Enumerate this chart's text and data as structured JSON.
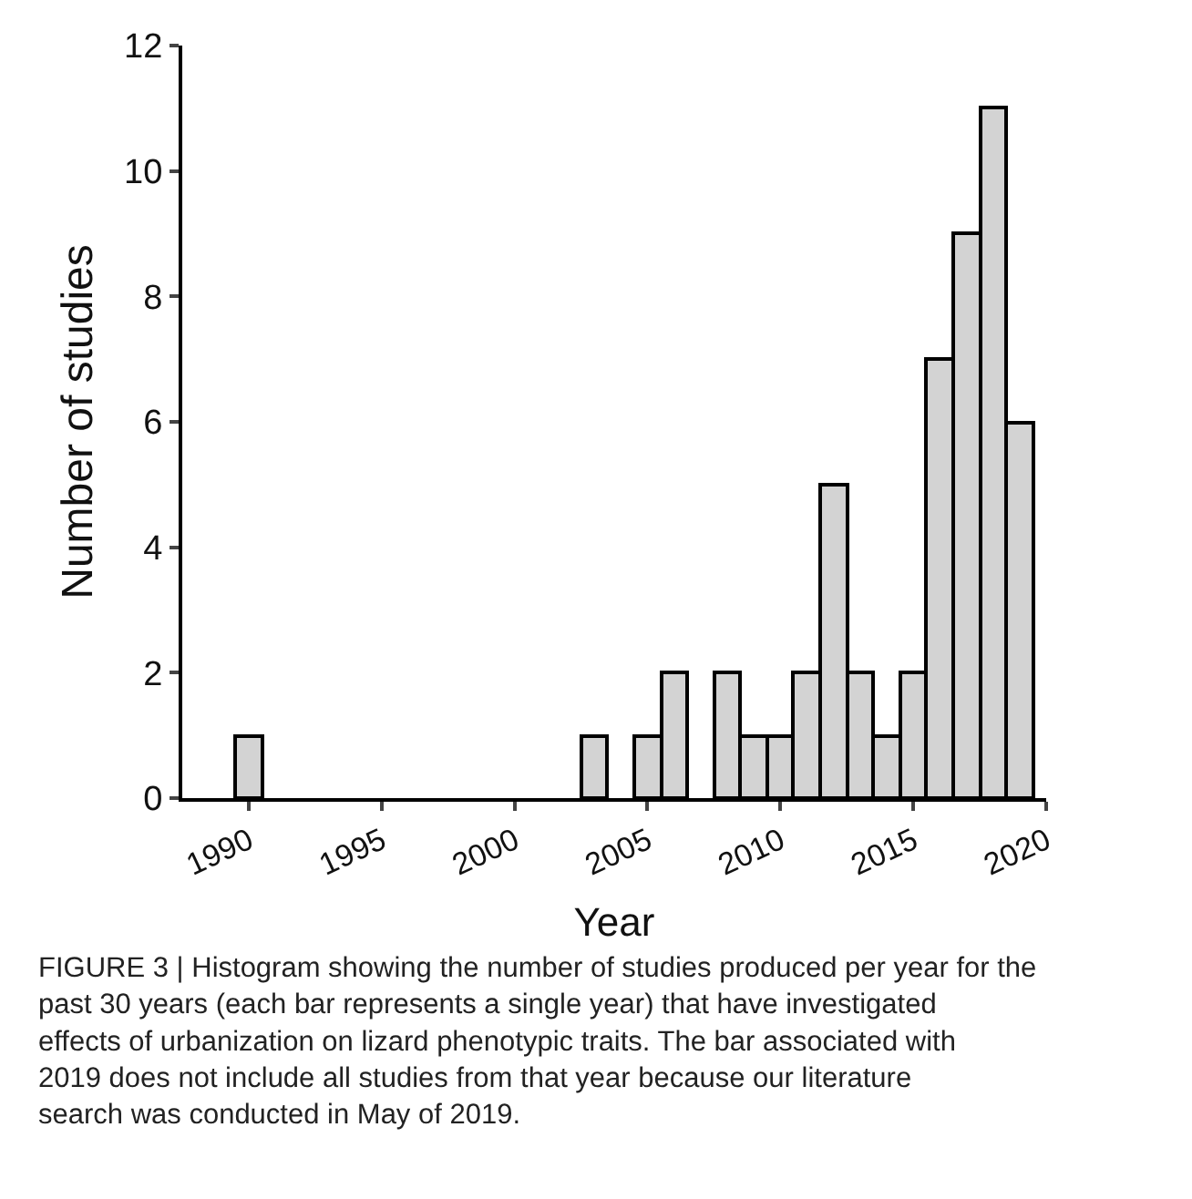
{
  "chart_data": {
    "type": "histogram",
    "xlabel": "Year",
    "ylabel": "Number of studies",
    "bins": [
      1989.5,
      1990.5,
      1991.5,
      1992.5,
      1993.5,
      1994.5,
      1995.5,
      1996.5,
      1997.5,
      1998.5,
      1999.5,
      2000.5,
      2001.5,
      2002.5,
      2003.5,
      2004.5,
      2005.5,
      2006.5,
      2007.5,
      2008.5,
      2009.5,
      2010.5,
      2011.5,
      2012.5,
      2013.5,
      2014.5,
      2015.5,
      2016.5,
      2017.5,
      2018.5,
      2019.5
    ],
    "values": [
      1,
      0,
      0,
      0,
      0,
      0,
      0,
      0,
      0,
      0,
      0,
      0,
      0,
      1,
      0,
      1,
      2,
      0,
      2,
      1,
      1,
      2,
      5,
      2,
      1,
      2,
      7,
      9,
      11,
      6
    ],
    "color": "#d3d3d3",
    "xlim": [
      1987.5,
      2020
    ],
    "xticks": [
      1990,
      1995,
      2000,
      2005,
      2010,
      2015,
      2020
    ],
    "ylim": [
      0,
      12
    ],
    "yticks": [
      0,
      2,
      4,
      6,
      8,
      10,
      12
    ],
    "annotations": [
      "FIGURE 3 | Histogram showing the number of studies produced per year for the past 30 years (each bar represents a single year) that have investigated effects of urbanization on lizard phenotypic traits. The bar associated with 2019 does not include all studies from that year because our literature search was conducted in May of 2019."
    ]
  }
}
